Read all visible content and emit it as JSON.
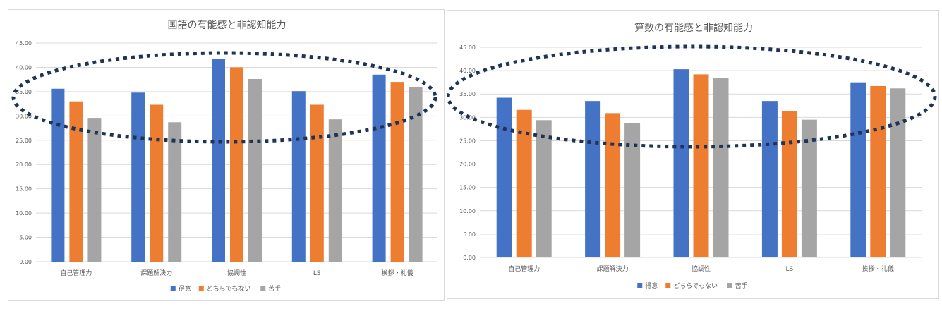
{
  "colors": {
    "tokui": "#4472C4",
    "dochira": "#ED7D31",
    "nigate": "#A5A5A5",
    "ellipse": "#1F3455",
    "grid": "#D9D9D9"
  },
  "chart_data": [
    {
      "type": "bar",
      "title": "国語の有能感と非認知能力",
      "categories": [
        "自己管理力",
        "課題解決力",
        "協調性",
        "LS",
        "挨拶・礼儀"
      ],
      "series": [
        {
          "name": "得意",
          "values": [
            35.6,
            34.8,
            41.7,
            35.1,
            38.5
          ]
        },
        {
          "name": "どちらでもない",
          "values": [
            33.0,
            32.3,
            40.0,
            32.3,
            37.0
          ]
        },
        {
          "name": "苦手",
          "values": [
            29.6,
            28.7,
            37.6,
            29.3,
            35.9
          ]
        }
      ],
      "y_ticks": [
        "0.00",
        "5.00",
        "10.00",
        "15.00",
        "20.00",
        "25.00",
        "30.00",
        "35.00",
        "40.00",
        "45.00"
      ],
      "ylim": [
        0,
        45
      ],
      "grid": true,
      "legend": "bottom"
    },
    {
      "type": "bar",
      "title": "算数の有能感と非認知能力",
      "categories": [
        "自己管理力",
        "課題解決力",
        "協調性",
        "LS",
        "挨拶・礼儀"
      ],
      "series": [
        {
          "name": "得意",
          "values": [
            34.2,
            33.5,
            40.3,
            33.5,
            37.5
          ]
        },
        {
          "name": "どちらでもない",
          "values": [
            31.6,
            30.9,
            39.2,
            31.3,
            36.7
          ]
        },
        {
          "name": "苦手",
          "values": [
            29.4,
            28.8,
            38.4,
            29.5,
            36.2
          ]
        }
      ],
      "y_ticks": [
        "0.00",
        "5.00",
        "10.00",
        "15.00",
        "20.00",
        "25.00",
        "30.00",
        "35.00",
        "40.00",
        "45.00"
      ],
      "ylim": [
        0,
        45
      ],
      "grid": true,
      "legend": "bottom"
    }
  ]
}
